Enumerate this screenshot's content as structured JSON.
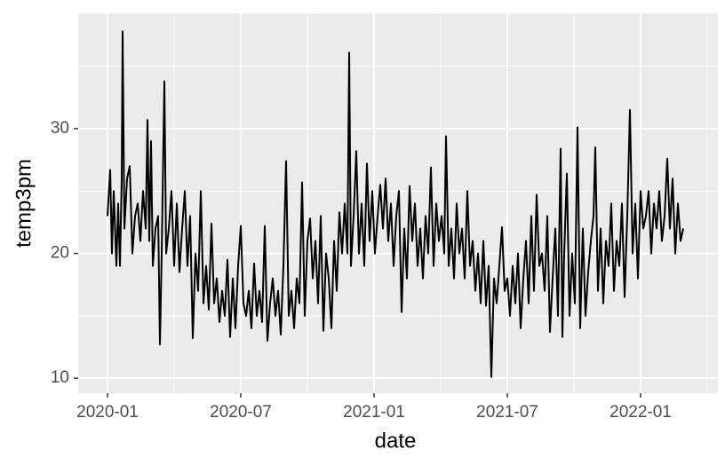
{
  "chart_data": {
    "type": "line",
    "x_label": "date",
    "y_label": "temp3pm",
    "x": [
      0,
      0.12,
      0.2,
      0.28,
      0.4,
      0.48,
      0.56,
      0.64,
      0.68,
      0.76,
      0.88,
      1,
      1.12,
      1.24,
      1.36,
      1.48,
      1.6,
      1.72,
      1.8,
      1.88,
      1.96,
      2.04,
      2.16,
      2.28,
      2.36,
      2.44,
      2.56,
      2.64,
      2.76,
      2.88,
      3,
      3.12,
      3.24,
      3.36,
      3.48,
      3.6,
      3.72,
      3.84,
      3.96,
      4.08,
      4.2,
      4.32,
      4.44,
      4.56,
      4.68,
      4.8,
      4.92,
      5.04,
      5.16,
      5.28,
      5.4,
      5.52,
      5.64,
      5.76,
      5.88,
      6,
      6.12,
      6.24,
      6.36,
      6.48,
      6.6,
      6.72,
      6.84,
      6.96,
      7.08,
      7.2,
      7.32,
      7.44,
      7.56,
      7.68,
      7.8,
      7.92,
      8.04,
      8.16,
      8.28,
      8.4,
      8.52,
      8.64,
      8.76,
      8.88,
      9,
      9.12,
      9.24,
      9.36,
      9.48,
      9.6,
      9.72,
      9.84,
      9.96,
      10.08,
      10.2,
      10.32,
      10.44,
      10.56,
      10.68,
      10.8,
      10.88,
      10.96,
      11.08,
      11.2,
      11.32,
      11.44,
      11.56,
      11.68,
      11.8,
      11.92,
      12.04,
      12.16,
      12.28,
      12.4,
      12.52,
      12.64,
      12.76,
      12.88,
      13,
      13.12,
      13.24,
      13.36,
      13.48,
      13.6,
      13.72,
      13.84,
      13.96,
      14.08,
      14.2,
      14.32,
      14.44,
      14.56,
      14.68,
      14.8,
      14.92,
      15.04,
      15.16,
      15.24,
      15.36,
      15.48,
      15.6,
      15.72,
      15.84,
      15.96,
      16.08,
      16.2,
      16.32,
      16.44,
      16.56,
      16.68,
      16.8,
      16.92,
      17.04,
      17.16,
      17.28,
      17.4,
      17.52,
      17.64,
      17.76,
      17.88,
      18,
      18.12,
      18.24,
      18.36,
      18.48,
      18.6,
      18.72,
      18.84,
      18.96,
      19.08,
      19.2,
      19.32,
      19.44,
      19.56,
      19.68,
      19.8,
      19.92,
      20.04,
      20.16,
      20.28,
      20.4,
      20.48,
      20.56,
      20.68,
      20.8,
      20.92,
      21.04,
      21.16,
      21.28,
      21.4,
      21.52,
      21.64,
      21.76,
      21.88,
      21.96,
      22.08,
      22.2,
      22.32,
      22.44,
      22.56,
      22.68,
      22.8,
      22.92,
      23.04,
      23.16,
      23.28,
      23.4,
      23.52,
      23.64,
      23.76,
      23.88,
      24,
      24.12,
      24.24,
      24.36,
      24.48,
      24.6,
      24.72,
      24.84,
      24.96,
      25.08,
      25.2,
      25.32,
      25.44,
      25.56,
      25.68,
      25.8,
      25.92
    ],
    "series": [
      {
        "color": "#000000",
        "values": [
          23,
          26.7,
          20,
          25,
          19,
          24,
          19,
          26,
          37.8,
          22,
          26,
          27,
          20,
          23,
          24,
          21,
          25,
          22,
          30.7,
          21,
          29,
          19,
          22,
          23,
          12.7,
          20,
          33.8,
          20,
          22,
          25,
          19,
          24,
          18.5,
          22,
          25,
          19,
          23,
          13.2,
          20,
          17,
          25,
          16,
          19,
          15.5,
          22.4,
          16,
          18,
          14.5,
          17,
          15,
          19.5,
          13.3,
          18,
          14,
          19,
          22.2,
          16,
          15,
          17,
          14,
          19.2,
          15,
          17,
          14.5,
          22.2,
          13,
          16,
          18,
          15,
          17,
          13.5,
          19,
          27.4,
          15,
          17,
          14,
          18,
          16,
          25.7,
          15,
          21,
          22.8,
          18,
          21,
          16,
          23,
          13.8,
          20,
          18,
          14,
          21,
          17,
          23.3,
          20,
          24,
          20,
          36.1,
          19,
          23,
          28.2,
          20,
          24,
          19,
          27.2,
          21,
          25,
          20,
          23,
          25.5,
          22,
          26,
          21,
          24,
          19,
          23,
          25,
          15.3,
          22,
          18,
          25.4,
          21,
          24,
          19,
          22,
          18,
          23,
          20,
          26.9,
          19,
          24,
          21,
          23,
          20,
          29.4,
          19,
          22,
          18,
          24,
          20,
          22,
          18,
          25,
          19,
          21,
          17,
          20,
          16,
          21,
          15.8,
          19,
          10.1,
          18,
          16,
          19,
          22.1,
          17,
          18,
          15,
          19,
          16,
          20,
          14,
          18,
          21,
          16,
          23,
          17,
          24.7,
          19,
          20,
          17,
          23,
          13.7,
          18,
          22,
          15,
          28.4,
          13.3,
          20,
          26.4,
          15,
          20,
          16,
          30.1,
          14,
          22,
          15,
          18.5,
          21,
          23,
          28.5,
          17,
          22,
          16,
          21,
          19,
          24,
          17,
          21,
          19,
          24,
          16.5,
          23,
          31.5,
          20,
          24,
          18,
          25,
          22,
          23,
          25,
          20,
          24,
          22,
          25,
          21,
          23,
          27.6,
          22,
          26,
          20,
          24,
          21,
          22
        ]
      }
    ],
    "xlim": [
      -1.32,
      27.48
    ],
    "ylim": [
      8.8,
      39.25
    ],
    "xticks": [
      {
        "value": 0,
        "label": "2020-01"
      },
      {
        "value": 6,
        "label": "2020-07"
      },
      {
        "value": 12,
        "label": "2021-01"
      },
      {
        "value": 18,
        "label": "2021-07"
      },
      {
        "value": 24,
        "label": "2022-01"
      }
    ],
    "yticks": [
      10,
      20,
      30
    ],
    "grid": true
  }
}
